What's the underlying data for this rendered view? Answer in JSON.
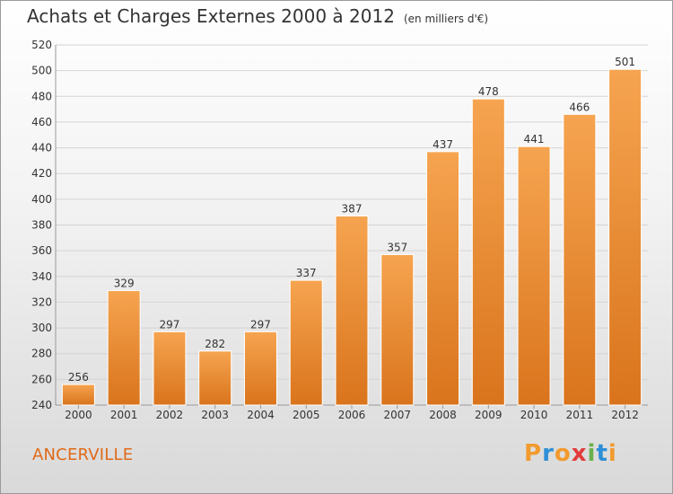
{
  "header": {
    "title": "Achats et Charges Externes 2000 à 2012",
    "subtitle": "(en milliers d'€)"
  },
  "footer": {
    "commune": "ANCERVILLE",
    "logo_letters": [
      "P",
      "r",
      "o",
      "x",
      "i",
      "t",
      "i"
    ],
    "logo_colors": [
      "#f29a2e",
      "#2f8fd6",
      "#f29a2e",
      "#e23b3b",
      "#6ab04c",
      "#2f8fd6",
      "#f29a2e"
    ]
  },
  "colors": {
    "bar_top": "#f6a450",
    "bar_bottom": "#d9741c",
    "bar_stroke": "#ffffff",
    "grid": "#d4d4d4"
  },
  "chart_data": {
    "type": "bar",
    "title": "Achats et Charges Externes 2000 à 2012",
    "subtitle": "(en milliers d'€)",
    "categories": [
      "2000",
      "2001",
      "2002",
      "2003",
      "2004",
      "2005",
      "2006",
      "2007",
      "2008",
      "2009",
      "2010",
      "2011",
      "2012"
    ],
    "values": [
      256,
      329,
      297,
      282,
      297,
      337,
      387,
      357,
      437,
      478,
      441,
      466,
      501
    ],
    "ylim": [
      240,
      520
    ],
    "yticks": [
      240,
      260,
      280,
      300,
      320,
      340,
      360,
      380,
      400,
      420,
      440,
      460,
      480,
      500,
      520
    ],
    "grid": true,
    "legend": "none"
  }
}
